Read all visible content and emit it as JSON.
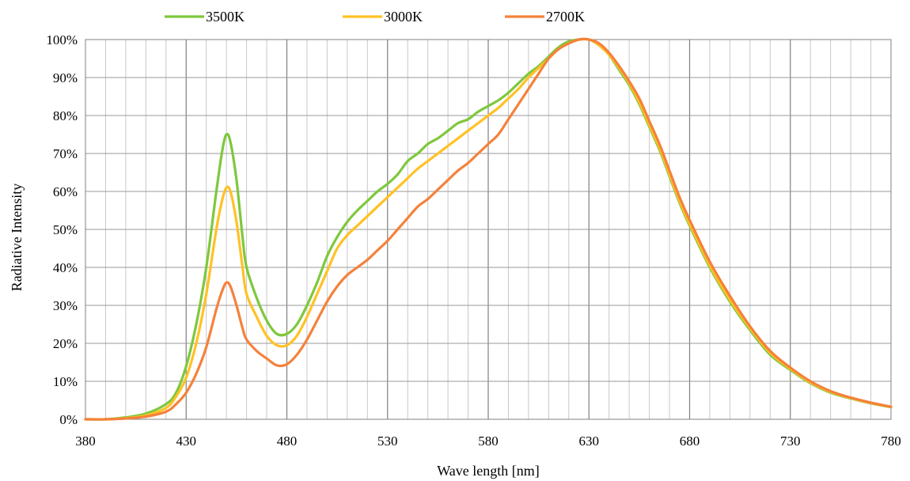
{
  "chart_data": {
    "type": "line",
    "title": "",
    "xlabel": "Wave length [nm]",
    "ylabel": "Radiative Intensity",
    "xlim": [
      380,
      780
    ],
    "ylim": [
      0,
      100
    ],
    "x_ticks": [
      "380",
      "430",
      "480",
      "530",
      "580",
      "630",
      "680",
      "730",
      "780"
    ],
    "y_ticks": [
      "0%",
      "10%",
      "20%",
      "30%",
      "40%",
      "50%",
      "60%",
      "70%",
      "80%",
      "90%",
      "100%"
    ],
    "grid": true,
    "legend_position": "top",
    "series": [
      {
        "name": "3500K",
        "color": "#7ec83c",
        "points": [
          [
            380,
            0
          ],
          [
            390,
            0
          ],
          [
            400,
            0.5
          ],
          [
            410,
            1.5
          ],
          [
            420,
            4
          ],
          [
            425,
            7
          ],
          [
            430,
            14
          ],
          [
            435,
            25
          ],
          [
            440,
            40
          ],
          [
            445,
            60
          ],
          [
            448,
            71
          ],
          [
            450,
            75
          ],
          [
            452,
            73
          ],
          [
            455,
            63
          ],
          [
            458,
            48
          ],
          [
            460,
            40
          ],
          [
            465,
            32
          ],
          [
            470,
            26
          ],
          [
            475,
            22.5
          ],
          [
            480,
            22.5
          ],
          [
            485,
            25
          ],
          [
            490,
            30
          ],
          [
            495,
            36
          ],
          [
            500,
            43
          ],
          [
            505,
            48
          ],
          [
            510,
            52
          ],
          [
            515,
            55
          ],
          [
            520,
            57.5
          ],
          [
            525,
            60
          ],
          [
            530,
            62
          ],
          [
            535,
            64.5
          ],
          [
            540,
            68
          ],
          [
            545,
            70
          ],
          [
            550,
            72.5
          ],
          [
            555,
            74
          ],
          [
            560,
            76
          ],
          [
            565,
            78
          ],
          [
            570,
            79
          ],
          [
            575,
            81
          ],
          [
            580,
            82.5
          ],
          [
            585,
            84
          ],
          [
            590,
            86
          ],
          [
            595,
            88.5
          ],
          [
            600,
            91
          ],
          [
            605,
            93
          ],
          [
            610,
            95.5
          ],
          [
            615,
            98
          ],
          [
            620,
            99.5
          ],
          [
            625,
            100
          ],
          [
            630,
            100
          ],
          [
            635,
            98.5
          ],
          [
            640,
            96
          ],
          [
            645,
            92
          ],
          [
            650,
            88
          ],
          [
            655,
            83
          ],
          [
            660,
            77
          ],
          [
            665,
            71
          ],
          [
            670,
            64
          ],
          [
            675,
            57
          ],
          [
            680,
            51
          ],
          [
            690,
            40
          ],
          [
            700,
            31
          ],
          [
            710,
            23.5
          ],
          [
            720,
            17
          ],
          [
            730,
            13
          ],
          [
            740,
            9.5
          ],
          [
            750,
            7
          ],
          [
            760,
            5.5
          ],
          [
            770,
            4.2
          ],
          [
            780,
            3.2
          ]
        ]
      },
      {
        "name": "3000K",
        "color": "#ffc125",
        "points": [
          [
            380,
            0
          ],
          [
            390,
            0
          ],
          [
            400,
            0.3
          ],
          [
            410,
            1
          ],
          [
            420,
            3
          ],
          [
            425,
            6
          ],
          [
            430,
            11
          ],
          [
            435,
            20
          ],
          [
            440,
            33
          ],
          [
            445,
            50
          ],
          [
            448,
            58
          ],
          [
            450,
            61
          ],
          [
            452,
            60
          ],
          [
            455,
            52
          ],
          [
            458,
            40
          ],
          [
            460,
            33
          ],
          [
            465,
            27
          ],
          [
            470,
            22
          ],
          [
            475,
            19.5
          ],
          [
            480,
            19.5
          ],
          [
            485,
            22
          ],
          [
            490,
            27
          ],
          [
            495,
            33
          ],
          [
            500,
            39
          ],
          [
            505,
            45
          ],
          [
            510,
            48.5
          ],
          [
            515,
            51
          ],
          [
            520,
            53.5
          ],
          [
            525,
            56
          ],
          [
            530,
            58.5
          ],
          [
            535,
            61
          ],
          [
            540,
            63.5
          ],
          [
            545,
            66
          ],
          [
            550,
            68
          ],
          [
            555,
            70
          ],
          [
            560,
            72
          ],
          [
            565,
            74
          ],
          [
            570,
            76
          ],
          [
            575,
            78
          ],
          [
            580,
            80
          ],
          [
            585,
            82
          ],
          [
            590,
            84.5
          ],
          [
            595,
            87
          ],
          [
            600,
            90
          ],
          [
            605,
            92.5
          ],
          [
            610,
            95
          ],
          [
            615,
            97.5
          ],
          [
            620,
            99
          ],
          [
            625,
            100
          ],
          [
            630,
            100
          ],
          [
            635,
            98.5
          ],
          [
            640,
            96
          ],
          [
            645,
            92.5
          ],
          [
            650,
            88.5
          ],
          [
            655,
            83.5
          ],
          [
            660,
            77.5
          ],
          [
            665,
            71.5
          ],
          [
            670,
            64.5
          ],
          [
            675,
            57.5
          ],
          [
            680,
            51.5
          ],
          [
            690,
            40.5
          ],
          [
            700,
            31.5
          ],
          [
            710,
            24
          ],
          [
            720,
            17.5
          ],
          [
            730,
            13.3
          ],
          [
            740,
            9.7
          ],
          [
            750,
            7.2
          ],
          [
            760,
            5.6
          ],
          [
            770,
            4.3
          ],
          [
            780,
            3.3
          ]
        ]
      },
      {
        "name": "2700K",
        "color": "#f5813b",
        "points": [
          [
            380,
            0
          ],
          [
            390,
            0
          ],
          [
            400,
            0.2
          ],
          [
            410,
            0.7
          ],
          [
            420,
            2
          ],
          [
            425,
            4
          ],
          [
            430,
            7
          ],
          [
            435,
            12
          ],
          [
            440,
            19
          ],
          [
            445,
            29
          ],
          [
            448,
            34
          ],
          [
            450,
            36
          ],
          [
            452,
            35
          ],
          [
            455,
            30
          ],
          [
            458,
            24
          ],
          [
            460,
            21
          ],
          [
            465,
            18
          ],
          [
            470,
            16
          ],
          [
            475,
            14.2
          ],
          [
            480,
            14.5
          ],
          [
            485,
            17
          ],
          [
            490,
            21
          ],
          [
            495,
            26
          ],
          [
            500,
            31
          ],
          [
            505,
            35
          ],
          [
            510,
            38
          ],
          [
            515,
            40
          ],
          [
            520,
            42
          ],
          [
            525,
            44.5
          ],
          [
            530,
            47
          ],
          [
            535,
            50
          ],
          [
            540,
            53
          ],
          [
            545,
            56
          ],
          [
            550,
            58
          ],
          [
            555,
            60.5
          ],
          [
            560,
            63
          ],
          [
            565,
            65.5
          ],
          [
            570,
            67.5
          ],
          [
            575,
            70
          ],
          [
            580,
            72.5
          ],
          [
            585,
            75
          ],
          [
            590,
            79
          ],
          [
            595,
            83
          ],
          [
            600,
            87
          ],
          [
            605,
            91
          ],
          [
            610,
            95
          ],
          [
            615,
            97.5
          ],
          [
            620,
            99
          ],
          [
            625,
            100
          ],
          [
            630,
            100
          ],
          [
            635,
            99
          ],
          [
            640,
            96.5
          ],
          [
            645,
            93
          ],
          [
            650,
            89
          ],
          [
            655,
            84.5
          ],
          [
            660,
            78.5
          ],
          [
            665,
            72.5
          ],
          [
            670,
            65.5
          ],
          [
            675,
            58.5
          ],
          [
            680,
            52.5
          ],
          [
            690,
            41.5
          ],
          [
            700,
            32.5
          ],
          [
            710,
            24.5
          ],
          [
            720,
            18
          ],
          [
            730,
            13.6
          ],
          [
            740,
            10
          ],
          [
            750,
            7.4
          ],
          [
            760,
            5.7
          ],
          [
            770,
            4.4
          ],
          [
            780,
            3.3
          ]
        ]
      }
    ]
  }
}
